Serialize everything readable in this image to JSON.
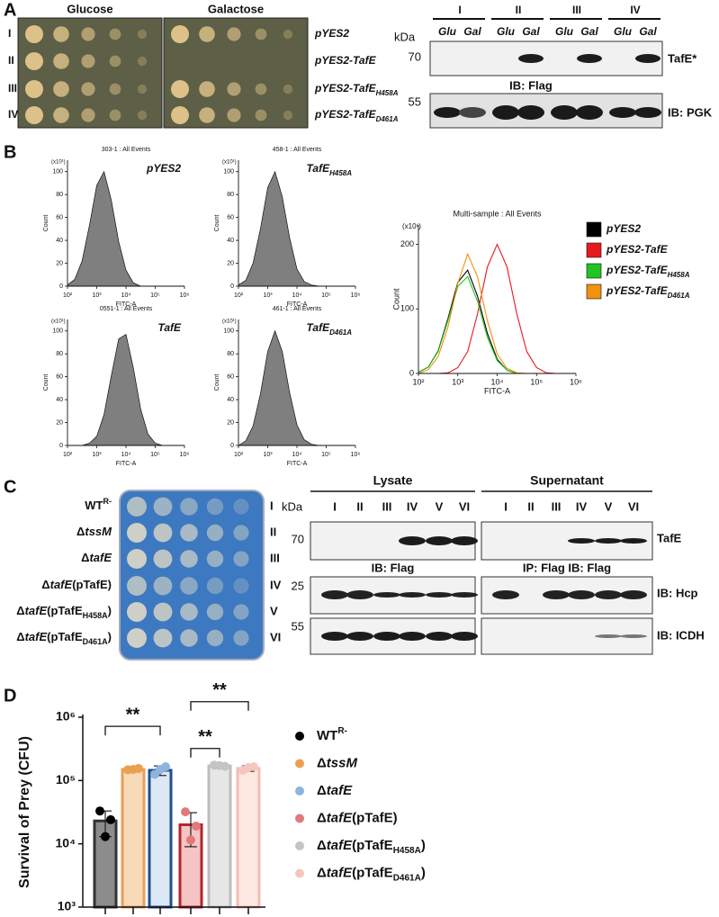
{
  "panel_a": {
    "label": "A",
    "media": [
      "Glucose",
      "Galactose"
    ],
    "rows": [
      "I",
      "II",
      "III",
      "IV"
    ],
    "strains": [
      [
        {
          "text": "pYES2"
        }
      ],
      [
        {
          "text": "pYES2-TafE"
        }
      ],
      [
        {
          "text": "pYES2-TafE"
        },
        {
          "text": "H458A",
          "pos": "sub"
        }
      ],
      [
        {
          "text": "pYES2-TafE"
        },
        {
          "text": "D461A",
          "pos": "sub"
        }
      ]
    ],
    "blot": {
      "groups": [
        "I",
        "II",
        "III",
        "IV"
      ],
      "lanes": [
        "Glu",
        "Gal",
        "Glu",
        "Gal",
        "Glu",
        "Gal",
        "Glu",
        "Gal"
      ],
      "kda": "kDa",
      "markers": [
        70,
        55
      ],
      "targets": [
        "TafE*",
        "IB: PGK"
      ],
      "antibody": "IB: Flag"
    }
  },
  "panel_b": {
    "label": "B"
  },
  "panel_c": {
    "label": "C",
    "strains": [
      [
        {
          "text": "WT"
        },
        {
          "text": "R-",
          "pos": "sup"
        }
      ],
      [
        {
          "text": "Δ"
        },
        {
          "text": "tssM",
          "italic": true
        }
      ],
      [
        {
          "text": "Δ"
        },
        {
          "text": "tafE",
          "italic": true
        }
      ],
      [
        {
          "text": "Δ"
        },
        {
          "text": "tafE",
          "italic": true
        },
        {
          "text": "(pTafE)"
        }
      ],
      [
        {
          "text": "Δ"
        },
        {
          "text": "tafE",
          "italic": true
        },
        {
          "text": "(pTafE"
        },
        {
          "text": "H458A",
          "pos": "sub"
        },
        {
          "text": ")"
        }
      ],
      [
        {
          "text": "Δ"
        },
        {
          "text": "tafE",
          "italic": true
        },
        {
          "text": "(pTafE"
        },
        {
          "text": "D461A",
          "pos": "sub"
        },
        {
          "text": ")"
        }
      ]
    ],
    "rows": [
      "I",
      "II",
      "III",
      "IV",
      "V",
      "VI"
    ],
    "blot": {
      "fractions": [
        {
          "name": "Lysate",
          "lanes": [
            "I",
            "II",
            "III",
            "IV",
            "V",
            "VI"
          ],
          "antibody": "IB: Flag"
        },
        {
          "name": "Supernatant",
          "lanes": [
            "I",
            "II",
            "III",
            "IV",
            "V",
            "VI"
          ],
          "antibody": "IP: Flag IB: Flag"
        }
      ],
      "kda": "kDa",
      "markers": [
        70,
        25,
        55
      ],
      "targets": [
        "TafE",
        "IB: Hcp",
        "IB: ICDH"
      ]
    }
  },
  "panel_d": {
    "label": "D"
  },
  "chart_data": [
    {
      "type": "area",
      "title": "303-1 : All Events",
      "sample": [
        {
          "text": "pYES2"
        }
      ],
      "y_unit": "(x10¹)",
      "ylabel": "Count",
      "xlabel": "FITC-A",
      "color": "#7f7f7f",
      "xscale": "log",
      "x": [
        100,
        178,
        316,
        562,
        1000,
        1778,
        3162,
        5623,
        10000,
        17783,
        31623,
        56234,
        100000,
        177828,
        316228,
        562341,
        1000000
      ],
      "values": [
        1,
        6,
        22,
        53,
        88,
        100,
        75,
        39,
        14,
        3,
        0,
        0,
        0,
        0,
        0,
        0,
        0
      ],
      "xlim": [
        100,
        1000000
      ],
      "xticks": [
        {
          "value": 100,
          "label": "10²"
        },
        {
          "value": 1000,
          "label": "10³"
        },
        {
          "value": 10000,
          "label": "10⁴"
        },
        {
          "value": 100000,
          "label": "10⁵"
        },
        {
          "value": 1000000,
          "label": "10⁶"
        }
      ],
      "ylim": [
        0,
        110
      ],
      "yticks": [
        0,
        20,
        40,
        60,
        80,
        100
      ]
    },
    {
      "type": "area",
      "title": "458-1 : All Events",
      "sample": [
        {
          "text": "TafE"
        },
        {
          "text": "H458A",
          "pos": "sub"
        }
      ],
      "y_unit": "(x10¹)",
      "ylabel": "Count",
      "xlabel": "FITC-A",
      "color": "#7f7f7f",
      "xscale": "log",
      "x": [
        100,
        178,
        316,
        562,
        1000,
        1778,
        3162,
        5623,
        10000,
        17783,
        31623,
        56234,
        100000,
        177828,
        316228,
        562341,
        1000000
      ],
      "values": [
        1,
        5,
        20,
        50,
        86,
        100,
        78,
        42,
        15,
        4,
        1,
        0,
        0,
        0,
        0,
        0,
        0
      ],
      "xlim": [
        100,
        1000000
      ],
      "xticks": [
        {
          "value": 100,
          "label": "10²"
        },
        {
          "value": 1000,
          "label": "10³"
        },
        {
          "value": 10000,
          "label": "10⁴"
        },
        {
          "value": 100000,
          "label": "10⁵"
        },
        {
          "value": 1000000,
          "label": "10⁶"
        }
      ],
      "ylim": [
        0,
        110
      ],
      "yticks": [
        0,
        20,
        40,
        60,
        80,
        100
      ]
    },
    {
      "type": "area",
      "title": "0551-1 : All Events",
      "sample": [
        {
          "text": "TafE"
        }
      ],
      "y_unit": "(x10¹)",
      "ylabel": "Count",
      "xlabel": "FITC-A",
      "color": "#7f7f7f",
      "xscale": "log",
      "x": [
        100,
        178,
        316,
        562,
        1000,
        1778,
        3162,
        5623,
        10000,
        17783,
        31623,
        56234,
        100000,
        177828,
        316228,
        562341,
        1000000
      ],
      "values": [
        0,
        0,
        0,
        2,
        8,
        27,
        61,
        93,
        97,
        68,
        32,
        10,
        2,
        0,
        0,
        0,
        0
      ],
      "xlim": [
        100,
        1000000
      ],
      "xticks": [
        {
          "value": 100,
          "label": "10²"
        },
        {
          "value": 1000,
          "label": "10³"
        },
        {
          "value": 10000,
          "label": "10⁴"
        },
        {
          "value": 100000,
          "label": "10⁵"
        },
        {
          "value": 1000000,
          "label": "10⁶"
        }
      ],
      "ylim": [
        0,
        110
      ],
      "yticks": [
        0,
        20,
        40,
        60,
        80,
        100
      ]
    },
    {
      "type": "area",
      "title": "461-1 : All Events",
      "sample": [
        {
          "text": "TafE"
        },
        {
          "text": "D461A",
          "pos": "sub"
        }
      ],
      "y_unit": "(x10¹)",
      "ylabel": "Count",
      "xlabel": "FITC-A",
      "color": "#7f7f7f",
      "xscale": "log",
      "x": [
        100,
        178,
        316,
        562,
        1000,
        1778,
        3162,
        5623,
        10000,
        17783,
        31623,
        56234,
        100000,
        177828,
        316228,
        562341,
        1000000
      ],
      "values": [
        0,
        4,
        17,
        45,
        82,
        100,
        82,
        46,
        18,
        5,
        1,
        0,
        0,
        0,
        0,
        0,
        0
      ],
      "xlim": [
        100,
        1000000
      ],
      "xticks": [
        {
          "value": 100,
          "label": "10²"
        },
        {
          "value": 1000,
          "label": "10³"
        },
        {
          "value": 10000,
          "label": "10⁴"
        },
        {
          "value": 100000,
          "label": "10⁵"
        },
        {
          "value": 1000000,
          "label": "10⁶"
        }
      ],
      "ylim": [
        0,
        110
      ],
      "yticks": [
        0,
        20,
        40,
        60,
        80,
        100
      ]
    },
    {
      "type": "line",
      "title": "Multi-sample : All Events",
      "y_unit": "(x10¹)",
      "ylabel": "Count",
      "xlabel": "FITC-A",
      "xscale": "log",
      "x": [
        100,
        178,
        316,
        562,
        1000,
        1778,
        3162,
        5623,
        10000,
        17783,
        31623,
        56234,
        100000,
        177828,
        316228,
        562341,
        1000000
      ],
      "series": [
        {
          "name": [
            {
              "text": "pYES2"
            }
          ],
          "color": "#000000",
          "values": [
            2,
            10,
            35,
            85,
            141,
            160,
            120,
            62,
            22,
            5,
            0,
            0,
            0,
            0,
            0,
            0,
            0
          ]
        },
        {
          "name": [
            {
              "text": "pYES2-TafE"
            }
          ],
          "color": "#e8191e",
          "values": [
            0,
            0,
            0,
            1,
            9,
            34,
            92,
            165,
            200,
            165,
            92,
            34,
            9,
            1,
            0,
            0,
            0
          ]
        },
        {
          "name": [
            {
              "text": "pYES2-TafE"
            },
            {
              "text": "H458A",
              "pos": "sub"
            }
          ],
          "color": "#22c422",
          "values": [
            2,
            10,
            34,
            82,
            135,
            150,
            112,
            56,
            20,
            5,
            0,
            0,
            0,
            0,
            0,
            0,
            0
          ]
        },
        {
          "name": [
            {
              "text": "pYES2-TafE"
            },
            {
              "text": "D461A",
              "pos": "sub"
            }
          ],
          "color": "#f2900f",
          "values": [
            0,
            6,
            26,
            72,
            140,
            185,
            150,
            82,
            30,
            8,
            1,
            0,
            0,
            0,
            0,
            0,
            0
          ]
        }
      ],
      "xlim": [
        100,
        1000000
      ],
      "xticks": [
        {
          "value": 100,
          "label": "10²"
        },
        {
          "value": 1000,
          "label": "10³"
        },
        {
          "value": 10000,
          "label": "10⁴"
        },
        {
          "value": 100000,
          "label": "10⁵"
        },
        {
          "value": 1000000,
          "label": "10⁶"
        }
      ],
      "ylim": [
        0,
        230
      ],
      "yticks": [
        0,
        100,
        200
      ]
    },
    {
      "type": "bar",
      "ylabel": "Survival of Prey (CFU)",
      "yscale": "log",
      "ylim": [
        1000,
        1000000
      ],
      "yticks": [
        {
          "value": 1000,
          "label": "10³"
        },
        {
          "value": 10000,
          "label": "10⁴"
        },
        {
          "value": 100000,
          "label": "10⁵"
        },
        {
          "value": 1000000,
          "label": "10⁶"
        }
      ],
      "series": [
        {
          "name": [
            {
              "text": "WT"
            },
            {
              "text": "R-",
              "pos": "sup"
            }
          ],
          "color": "#8c8c8c",
          "edge": "#333333",
          "dot_color": "#000000",
          "values": [
            23000
          ],
          "errors": [
            10000
          ],
          "points": [
            33000,
            24000,
            13000
          ]
        },
        {
          "name": [
            {
              "text": "Δ"
            },
            {
              "text": "tssM",
              "italic": true
            }
          ],
          "color": "#f8d9b8",
          "edge": "#e5a05a",
          "dot_color": "#eaa04f",
          "values": [
            150000
          ],
          "errors": [
            8000
          ],
          "points": [
            148000,
            155000,
            150000
          ]
        },
        {
          "name": [
            {
              "text": "Δ"
            },
            {
              "text": "tafE",
              "italic": true
            }
          ],
          "color": "#dce8f5",
          "edge": "#1f4e8c",
          "dot_color": "#8fb4dc",
          "values": [
            145000
          ],
          "errors": [
            25000
          ],
          "points": [
            125000,
            165000,
            150000
          ]
        },
        {
          "name": [
            {
              "text": "Δ"
            },
            {
              "text": "tafE",
              "italic": true
            },
            {
              "text": "(pTafE)"
            }
          ],
          "color": "#f5c4c4",
          "edge": "#b3262c",
          "dot_color": "#e07a7a",
          "values": [
            20000
          ],
          "errors": [
            11000
          ],
          "points": [
            32000,
            19000,
            11500
          ]
        },
        {
          "name": [
            {
              "text": "Δ"
            },
            {
              "text": "tafE",
              "italic": true
            },
            {
              "text": "(pTafE"
            },
            {
              "text": "H458A",
              "pos": "sub"
            },
            {
              "text": ")"
            }
          ],
          "color": "#e6e6e6",
          "edge": "#bdbdbd",
          "dot_color": "#c4c4c4",
          "values": [
            170000
          ],
          "errors": [
            8000
          ],
          "points": [
            175000,
            168000,
            172000
          ]
        },
        {
          "name": [
            {
              "text": "Δ"
            },
            {
              "text": "tafE",
              "italic": true
            },
            {
              "text": "(pTafE"
            },
            {
              "text": "D461A",
              "pos": "sub"
            },
            {
              "text": ")"
            }
          ],
          "color": "#fde8e2",
          "edge": "#f2bdb4",
          "dot_color": "#f6c6be",
          "values": [
            155000
          ],
          "errors": [
            15000
          ],
          "points": [
            145000,
            165000,
            160000
          ]
        }
      ],
      "annotations": [
        {
          "text": "**",
          "between": [
            0,
            2
          ]
        },
        {
          "text": "**",
          "between": [
            3,
            4
          ]
        },
        {
          "text": "**",
          "between": [
            3,
            5
          ]
        }
      ]
    }
  ]
}
